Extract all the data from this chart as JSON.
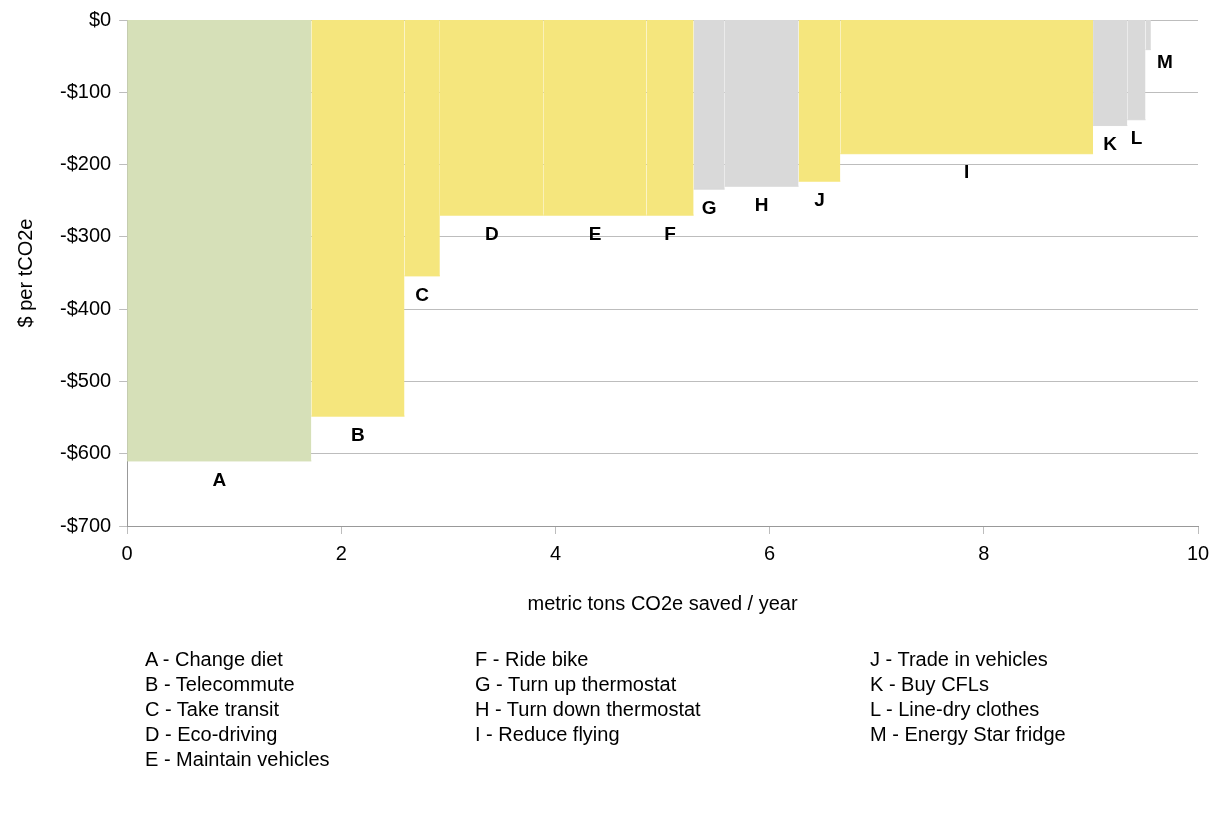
{
  "chart_data": {
    "type": "area",
    "xlabel": "metric tons CO2e saved / year",
    "ylabel": "$ per tCO2e",
    "xlim": [
      0,
      10
    ],
    "xticks": [
      0,
      2,
      4,
      6,
      8,
      10
    ],
    "ylim": [
      -700,
      0
    ],
    "yticks": [
      {
        "value": 0,
        "label": "$0"
      },
      {
        "value": -100,
        "label": "-$100"
      },
      {
        "value": -200,
        "label": "-$200"
      },
      {
        "value": -300,
        "label": "-$300"
      },
      {
        "value": -400,
        "label": "-$400"
      },
      {
        "value": -500,
        "label": "-$500"
      },
      {
        "value": -600,
        "label": "-$600"
      },
      {
        "value": -700,
        "label": "-$700"
      }
    ],
    "grid": "y",
    "marker": "none",
    "series": [
      {
        "name": "A",
        "color": "#d6e0b8",
        "x": [
          0,
          1.72
        ],
        "values": [
          -610,
          -610
        ]
      },
      {
        "name": "B",
        "color": "#f5e67d",
        "x": [
          1.72,
          2.59
        ],
        "values": [
          -548,
          -548
        ]
      },
      {
        "name": "C",
        "color": "#f5e67d",
        "x": [
          2.59,
          2.92
        ],
        "values": [
          -354,
          -354
        ]
      },
      {
        "name": "D",
        "color": "#f5e67d",
        "x": [
          2.92,
          3.89
        ],
        "values": [
          -270,
          -270
        ]
      },
      {
        "name": "E",
        "color": "#f5e67d",
        "x": [
          3.89,
          4.85
        ],
        "values": [
          -270,
          -270
        ]
      },
      {
        "name": "F",
        "color": "#f5e67d",
        "x": [
          4.85,
          5.29
        ],
        "values": [
          -270,
          -270
        ]
      },
      {
        "name": "G",
        "color": "#d9d9d9",
        "x": [
          5.29,
          5.58
        ],
        "values": [
          -234,
          -234
        ]
      },
      {
        "name": "H",
        "color": "#d9d9d9",
        "x": [
          5.58,
          6.27
        ],
        "values": [
          -230,
          -230
        ]
      },
      {
        "name": "J",
        "color": "#f5e67d",
        "x": [
          6.27,
          6.66
        ],
        "values": [
          -223,
          -223
        ]
      },
      {
        "name": "I",
        "color": "#f5e67d",
        "x": [
          6.66,
          9.02
        ],
        "values": [
          -185,
          -185
        ]
      },
      {
        "name": "K",
        "color": "#d9d9d9",
        "x": [
          9.02,
          9.34
        ],
        "values": [
          -146,
          -146
        ]
      },
      {
        "name": "L",
        "color": "#d9d9d9",
        "x": [
          9.34,
          9.51
        ],
        "values": [
          -138,
          -138
        ]
      },
      {
        "name": "M",
        "color": "#d9d9d9",
        "x": [
          9.51,
          9.56
        ],
        "values": [
          -41,
          -41
        ]
      }
    ],
    "annotations": [
      "A - Change diet",
      "B - Telecommute",
      "C - Take transit",
      "D - Eco-driving",
      "E - Maintain vehicles",
      "F - Ride bike",
      "G - Turn up thermostat",
      "H - Turn down thermostat",
      "I - Reduce flying",
      "J - Trade in vehicles",
      "K - Buy CFLs",
      "L - Line-dry clothes",
      "M - Energy Star fridge"
    ]
  }
}
